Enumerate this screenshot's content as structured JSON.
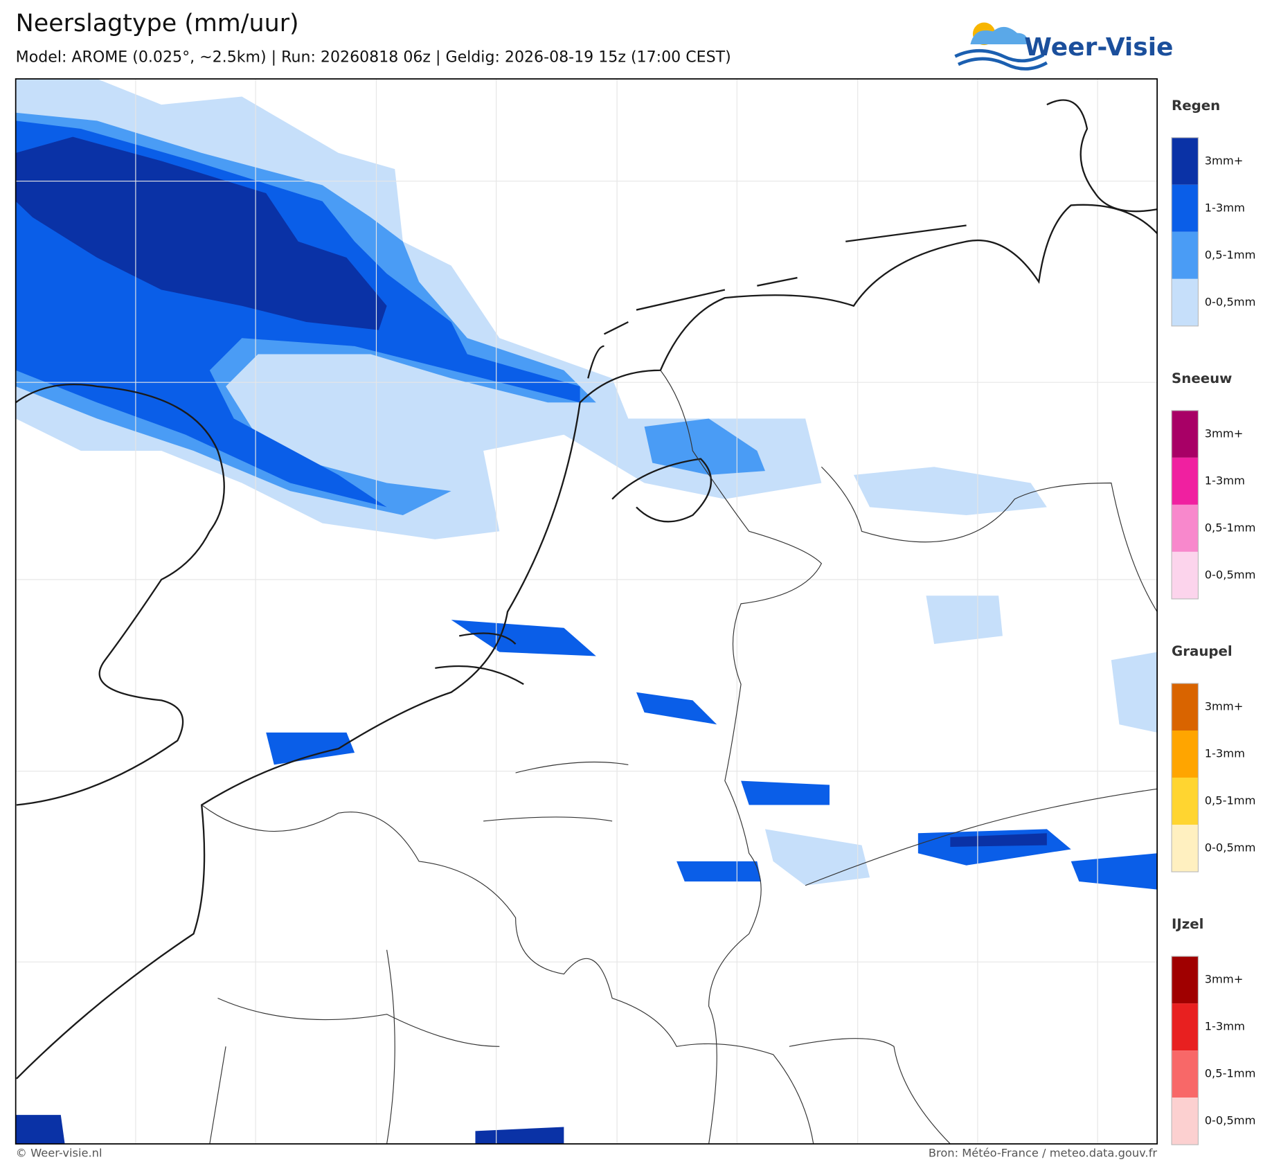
{
  "header": {
    "title": "Neerslagtype (mm/uur)",
    "subtitle": "Model: AROME (0.025°, ~2.5km)  |  Run: 20260818 06z  |  Geldig: 2026-08-19 15z (17:00 CEST)"
  },
  "logo": {
    "text": "Weer-Visie"
  },
  "legend": {
    "groups": [
      {
        "title": "Regen",
        "items": [
          {
            "label": "3mm+",
            "color": "#0a32a6"
          },
          {
            "label": "1-3mm",
            "color": "#0a5ee8"
          },
          {
            "label": "0,5-1mm",
            "color": "#4a9cf5"
          },
          {
            "label": "0-0,5mm",
            "color": "#c6dffa"
          }
        ]
      },
      {
        "title": "Sneeuw",
        "items": [
          {
            "label": "3mm+",
            "color": "#a80066"
          },
          {
            "label": "1-3mm",
            "color": "#f020a0"
          },
          {
            "label": "0,5-1mm",
            "color": "#f888cc"
          },
          {
            "label": "0-0,5mm",
            "color": "#fcd4ec"
          }
        ]
      },
      {
        "title": "Graupel",
        "items": [
          {
            "label": "3mm+",
            "color": "#d96400"
          },
          {
            "label": "1-3mm",
            "color": "#ffa500"
          },
          {
            "label": "0,5-1mm",
            "color": "#ffd530"
          },
          {
            "label": "0-0,5mm",
            "color": "#fff0c0"
          }
        ]
      },
      {
        "title": "IJzel",
        "items": [
          {
            "label": "3mm+",
            "color": "#a00000"
          },
          {
            "label": "1-3mm",
            "color": "#e82020"
          },
          {
            "label": "0,5-1mm",
            "color": "#f86868"
          },
          {
            "label": "0-0,5mm",
            "color": "#fcd0d0"
          }
        ]
      }
    ]
  },
  "footer": {
    "left": "© Weer-visie.nl",
    "right": "Bron: Météo-France / meteo.data.gouv.fr"
  }
}
